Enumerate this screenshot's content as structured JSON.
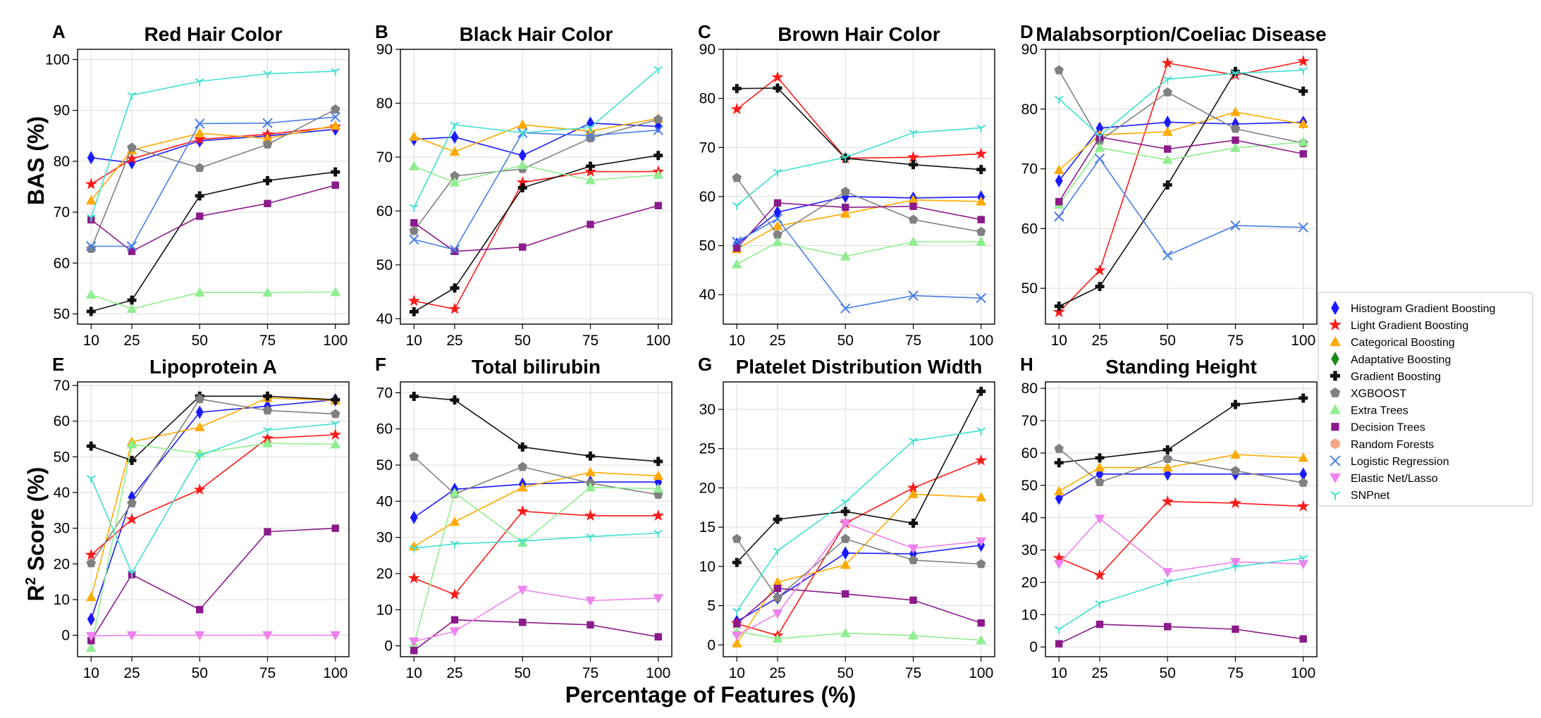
{
  "figure": {
    "ylabel_top": "BAS (%)",
    "ylabel_bottom_base": "R",
    "ylabel_bottom_sup": "2",
    "ylabel_bottom_rest": "Score (%)",
    "xlabel": "Percentage of Features (%)"
  },
  "legend": [
    {
      "name": "Histogram Gradient Boosting",
      "color": "#1a1aff",
      "marker": "diamond"
    },
    {
      "name": "Light Gradient Boosting",
      "color": "#ff1a1a",
      "marker": "star"
    },
    {
      "name": "Categorical Boosting",
      "color": "#ffaa00",
      "marker": "triangle-up"
    },
    {
      "name": "Adaptative Boosting",
      "color": "#1a8a1a",
      "marker": "diamond"
    },
    {
      "name": "Gradient Boosting",
      "color": "#111111",
      "marker": "plus"
    },
    {
      "name": "XGBOOST",
      "color": "#808080",
      "marker": "pentagon"
    },
    {
      "name": "Extra Trees",
      "color": "#90ee90",
      "marker": "triangle-up"
    },
    {
      "name": "Decision Trees",
      "color": "#8b1a8b",
      "marker": "square"
    },
    {
      "name": "Random Forests",
      "color": "#f4a582",
      "marker": "hexagon"
    },
    {
      "name": "Logistic Regression",
      "color": "#4a7ee8",
      "marker": "x"
    },
    {
      "name": "Elastic Net/Lasso",
      "color": "#ee82ee",
      "marker": "triangle-down"
    },
    {
      "name": "SNPnet",
      "color": "#40e0d0",
      "marker": "tri"
    }
  ],
  "chart_data": [
    {
      "panel": "A",
      "type": "line",
      "title": "Red Hair Color",
      "x": [
        10,
        25,
        50,
        75,
        100
      ],
      "xticks": [
        "10",
        "25",
        "50",
        "75",
        "100"
      ],
      "ylim": [
        48,
        102
      ],
      "yticks": [
        50,
        60,
        70,
        80,
        90,
        100
      ],
      "grid": true,
      "series": [
        {
          "name": "Histogram Gradient Boosting",
          "values": [
            80.7,
            79.7,
            84.0,
            85.0,
            86.3
          ]
        },
        {
          "name": "Light Gradient Boosting",
          "values": [
            75.5,
            80.5,
            84.3,
            85.3,
            86.8
          ]
        },
        {
          "name": "Categorical Boosting",
          "values": [
            72.3,
            82.2,
            85.5,
            84.5,
            87.0
          ]
        },
        {
          "name": "Gradient Boosting",
          "values": [
            50.5,
            52.7,
            73.2,
            76.2,
            77.9
          ]
        },
        {
          "name": "XGBOOST",
          "values": [
            62.8,
            82.7,
            78.7,
            83.3,
            90.2
          ]
        },
        {
          "name": "Extra Trees",
          "values": [
            53.8,
            51.0,
            54.2,
            54.2,
            54.3
          ]
        },
        {
          "name": "Decision Trees",
          "values": [
            68.5,
            62.3,
            69.2,
            71.7,
            75.3
          ]
        },
        {
          "name": "Logistic Regression",
          "values": [
            63.3,
            63.3,
            87.4,
            87.5,
            88.7
          ]
        },
        {
          "name": "SNPnet",
          "values": [
            69.0,
            93.0,
            95.7,
            97.2,
            97.7
          ]
        }
      ]
    },
    {
      "panel": "B",
      "type": "line",
      "title": "Black Hair Color",
      "x": [
        10,
        25,
        50,
        75,
        100
      ],
      "xticks": [
        "10",
        "25",
        "50",
        "75",
        "100"
      ],
      "ylim": [
        39,
        90
      ],
      "yticks": [
        40,
        50,
        60,
        70,
        80,
        90
      ],
      "grid": true,
      "series": [
        {
          "name": "Histogram Gradient Boosting",
          "values": [
            73.3,
            73.7,
            70.3,
            76.3,
            75.7
          ]
        },
        {
          "name": "Light Gradient Boosting",
          "values": [
            43.3,
            41.8,
            65.3,
            67.3,
            67.3
          ]
        },
        {
          "name": "Categorical Boosting",
          "values": [
            73.8,
            71.0,
            76.0,
            74.8,
            77.2
          ]
        },
        {
          "name": "Gradient Boosting",
          "values": [
            41.3,
            45.7,
            64.3,
            68.3,
            70.3
          ]
        },
        {
          "name": "XGBOOST",
          "values": [
            56.3,
            66.5,
            67.8,
            73.5,
            77.0
          ]
        },
        {
          "name": "Extra Trees",
          "values": [
            68.3,
            65.3,
            68.5,
            65.7,
            66.7
          ]
        },
        {
          "name": "Decision Trees",
          "values": [
            57.8,
            52.5,
            53.3,
            57.5,
            61.0
          ]
        },
        {
          "name": "Logistic Regression",
          "values": [
            54.7,
            52.8,
            74.5,
            74.0,
            75.0
          ]
        },
        {
          "name": "SNPnet",
          "values": [
            60.7,
            76.0,
            74.5,
            75.5,
            86.3
          ]
        }
      ]
    },
    {
      "panel": "C",
      "type": "line",
      "title": "Brown Hair Color",
      "x": [
        10,
        25,
        50,
        75,
        100
      ],
      "xticks": [
        "10",
        "25",
        "50",
        "75",
        "100"
      ],
      "ylim": [
        34,
        90
      ],
      "yticks": [
        40,
        50,
        60,
        70,
        80,
        90
      ],
      "grid": true,
      "series": [
        {
          "name": "Histogram Gradient Boosting",
          "values": [
            50.3,
            56.8,
            60.0,
            59.7,
            59.9
          ]
        },
        {
          "name": "Light Gradient Boosting",
          "values": [
            77.8,
            84.3,
            67.8,
            68.0,
            68.7
          ]
        },
        {
          "name": "Categorical Boosting",
          "values": [
            49.3,
            54.0,
            56.5,
            59.3,
            59.0
          ]
        },
        {
          "name": "Gradient Boosting",
          "values": [
            82.0,
            82.1,
            67.8,
            66.5,
            65.5
          ]
        },
        {
          "name": "XGBOOST",
          "values": [
            63.8,
            52.2,
            61.0,
            55.3,
            52.8
          ]
        },
        {
          "name": "Extra Trees",
          "values": [
            46.2,
            50.7,
            47.8,
            50.8,
            50.8
          ]
        },
        {
          "name": "Decision Trees",
          "values": [
            49.5,
            58.7,
            57.8,
            58.0,
            55.3
          ]
        },
        {
          "name": "Logistic Regression",
          "values": [
            50.8,
            55.5,
            37.2,
            39.8,
            39.3
          ]
        },
        {
          "name": "SNPnet",
          "values": [
            58.2,
            65.0,
            68.0,
            73.0,
            74.0
          ]
        }
      ]
    },
    {
      "panel": "D",
      "type": "line",
      "title": "Malabsorption/Coeliac Disease",
      "x": [
        10,
        25,
        50,
        75,
        100
      ],
      "xticks": [
        "10",
        "25",
        "50",
        "75",
        "100"
      ],
      "ylim": [
        44,
        90
      ],
      "yticks": [
        50,
        60,
        70,
        80,
        90
      ],
      "grid": true,
      "series": [
        {
          "name": "Histogram Gradient Boosting",
          "values": [
            68.0,
            76.8,
            77.8,
            77.5,
            77.8
          ]
        },
        {
          "name": "Light Gradient Boosting",
          "values": [
            46.0,
            53.0,
            87.7,
            85.7,
            88.0
          ]
        },
        {
          "name": "Categorical Boosting",
          "values": [
            69.8,
            75.7,
            76.2,
            79.5,
            77.5
          ]
        },
        {
          "name": "Gradient Boosting",
          "values": [
            47.0,
            50.3,
            67.3,
            86.3,
            83.0
          ]
        },
        {
          "name": "XGBOOST",
          "values": [
            86.5,
            74.7,
            82.8,
            76.7,
            74.3
          ]
        },
        {
          "name": "Extra Trees",
          "values": [
            64.0,
            73.5,
            71.5,
            73.5,
            74.5
          ]
        },
        {
          "name": "Decision Trees",
          "values": [
            64.5,
            75.3,
            73.3,
            74.8,
            72.5
          ]
        },
        {
          "name": "Logistic Regression",
          "values": [
            62.0,
            71.7,
            55.5,
            60.5,
            60.2
          ]
        },
        {
          "name": "SNPnet",
          "values": [
            81.7,
            75.5,
            85.0,
            86.0,
            86.5
          ]
        }
      ]
    },
    {
      "panel": "E",
      "type": "line",
      "title": "Lipoprotein A",
      "x": [
        10,
        25,
        50,
        75,
        100
      ],
      "xticks": [
        "10",
        "25",
        "50",
        "75",
        "100"
      ],
      "ylim": [
        -6,
        71
      ],
      "yticks": [
        0,
        10,
        20,
        30,
        40,
        50,
        60,
        70
      ],
      "grid": true,
      "series": [
        {
          "name": "Histogram Gradient Boosting",
          "values": [
            4.5,
            38.7,
            62.5,
            64.2,
            66.0
          ]
        },
        {
          "name": "Light Gradient Boosting",
          "values": [
            22.5,
            32.5,
            40.8,
            55.2,
            56.2
          ]
        },
        {
          "name": "Categorical Boosting",
          "values": [
            10.7,
            54.2,
            58.3,
            66.5,
            65.8
          ]
        },
        {
          "name": "Gradient Boosting",
          "values": [
            53.0,
            49.0,
            67.0,
            67.0,
            66.0
          ]
        },
        {
          "name": "XGBOOST",
          "values": [
            20.2,
            37.0,
            66.2,
            63.0,
            62.0
          ]
        },
        {
          "name": "Extra Trees",
          "values": [
            -3.5,
            53.5,
            51.0,
            53.8,
            53.5
          ]
        },
        {
          "name": "Decision Trees",
          "values": [
            -1.5,
            17.0,
            7.2,
            29.0,
            30.0
          ]
        },
        {
          "name": "Elastic Net/Lasso",
          "values": [
            -0.2,
            0.0,
            0.0,
            0.0,
            0.0
          ]
        },
        {
          "name": "SNPnet",
          "values": [
            44.0,
            17.5,
            50.3,
            57.5,
            59.3
          ]
        }
      ]
    },
    {
      "panel": "F",
      "type": "line",
      "title": "Total bilirubin",
      "x": [
        10,
        25,
        50,
        75,
        100
      ],
      "xticks": [
        "10",
        "25",
        "50",
        "75",
        "100"
      ],
      "ylim": [
        -3,
        73
      ],
      "yticks": [
        0,
        10,
        20,
        30,
        40,
        50,
        60,
        70
      ],
      "grid": true,
      "series": [
        {
          "name": "Histogram Gradient Boosting",
          "values": [
            35.5,
            43.3,
            44.7,
            45.3,
            45.3
          ]
        },
        {
          "name": "Light Gradient Boosting",
          "values": [
            18.7,
            14.2,
            37.2,
            36.0,
            36.0
          ]
        },
        {
          "name": "Categorical Boosting",
          "values": [
            27.5,
            34.3,
            43.8,
            48.0,
            47.0
          ]
        },
        {
          "name": "Gradient Boosting",
          "values": [
            69.0,
            68.0,
            55.0,
            52.5,
            51.0
          ]
        },
        {
          "name": "XGBOOST",
          "values": [
            52.3,
            42.0,
            49.5,
            45.0,
            41.8
          ]
        },
        {
          "name": "Extra Trees",
          "values": [
            0.5,
            42.3,
            28.5,
            43.8,
            43.5
          ]
        },
        {
          "name": "Decision Trees",
          "values": [
            -1.3,
            7.2,
            6.5,
            5.8,
            2.5
          ]
        },
        {
          "name": "Elastic Net/Lasso",
          "values": [
            1.2,
            4.0,
            15.5,
            12.5,
            13.2
          ]
        },
        {
          "name": "SNPnet",
          "values": [
            27.0,
            28.2,
            29.0,
            30.2,
            31.2
          ]
        }
      ]
    },
    {
      "panel": "G",
      "type": "line",
      "title": "Platelet Distribution Width",
      "x": [
        10,
        25,
        50,
        75,
        100
      ],
      "xticks": [
        "10",
        "25",
        "50",
        "75",
        "100"
      ],
      "ylim": [
        -1.5,
        33.5
      ],
      "yticks": [
        0,
        5,
        10,
        15,
        20,
        25,
        30
      ],
      "grid": true,
      "series": [
        {
          "name": "Histogram Gradient Boosting",
          "values": [
            3.0,
            6.0,
            11.7,
            11.6,
            12.7
          ]
        },
        {
          "name": "Light Gradient Boosting",
          "values": [
            2.7,
            1.2,
            15.5,
            20.0,
            23.5
          ]
        },
        {
          "name": "Categorical Boosting",
          "values": [
            0.2,
            8.0,
            10.2,
            19.2,
            18.8
          ]
        },
        {
          "name": "Gradient Boosting",
          "values": [
            10.5,
            16.0,
            17.0,
            15.5,
            32.3
          ]
        },
        {
          "name": "XGBOOST",
          "values": [
            13.5,
            6.0,
            13.5,
            10.8,
            10.3
          ]
        },
        {
          "name": "Extra Trees",
          "values": [
            1.7,
            0.8,
            1.5,
            1.2,
            0.6
          ]
        },
        {
          "name": "Decision Trees",
          "values": [
            2.7,
            7.2,
            6.5,
            5.7,
            2.8
          ]
        },
        {
          "name": "Elastic Net/Lasso",
          "values": [
            1.2,
            4.0,
            15.5,
            12.3,
            13.2
          ]
        },
        {
          "name": "SNPnet",
          "values": [
            4.3,
            12.0,
            18.2,
            26.0,
            27.3
          ]
        }
      ]
    },
    {
      "panel": "H",
      "type": "line",
      "title": "Standing Height",
      "x": [
        10,
        25,
        50,
        75,
        100
      ],
      "xticks": [
        "10",
        "25",
        "50",
        "75",
        "100"
      ],
      "ylim": [
        -3,
        82
      ],
      "yticks": [
        0,
        10,
        20,
        30,
        40,
        50,
        60,
        70,
        80
      ],
      "grid": true,
      "series": [
        {
          "name": "Histogram Gradient Boosting",
          "values": [
            46.0,
            53.5,
            53.5,
            53.5,
            53.5
          ]
        },
        {
          "name": "Light Gradient Boosting",
          "values": [
            27.5,
            22.2,
            45.0,
            44.5,
            43.5
          ]
        },
        {
          "name": "Categorical Boosting",
          "values": [
            48.2,
            55.5,
            55.5,
            59.5,
            58.5
          ]
        },
        {
          "name": "Gradient Boosting",
          "values": [
            57.0,
            58.5,
            61.0,
            75.0,
            77.0
          ]
        },
        {
          "name": "XGBOOST",
          "values": [
            61.3,
            51.0,
            58.2,
            54.5,
            50.8
          ]
        },
        {
          "name": "Decision Trees",
          "values": [
            1.0,
            7.0,
            6.3,
            5.5,
            2.5
          ]
        },
        {
          "name": "Elastic Net/Lasso",
          "values": [
            25.7,
            39.7,
            23.2,
            26.3,
            25.7
          ]
        },
        {
          "name": "SNPnet",
          "values": [
            5.5,
            13.5,
            20.2,
            24.8,
            27.5
          ]
        }
      ]
    }
  ]
}
